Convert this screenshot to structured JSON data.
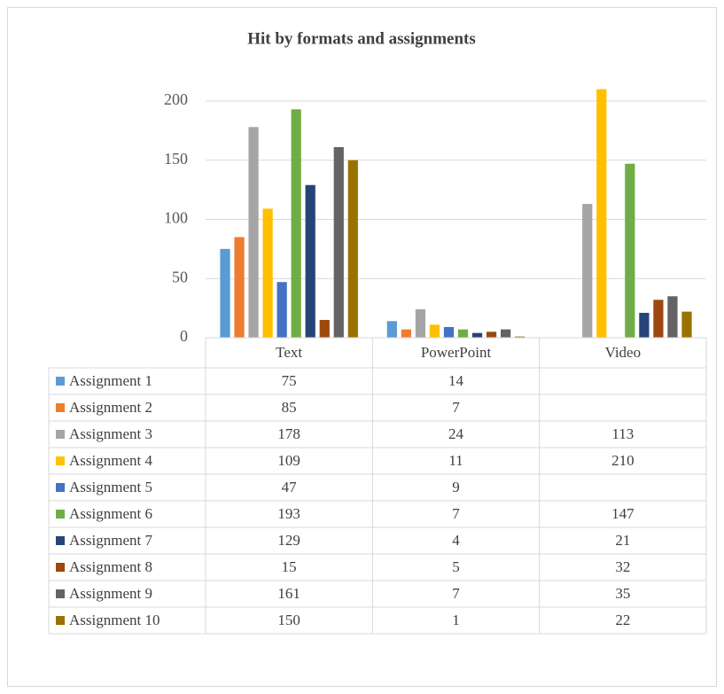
{
  "chart_data": {
    "type": "bar",
    "title": "Hit by formats and assignments",
    "categories": [
      "Text",
      "PowerPoint",
      "Video"
    ],
    "series": [
      {
        "name": "Assignment 1",
        "color": "#5b9bd5",
        "values": [
          75,
          14,
          null
        ]
      },
      {
        "name": "Assignment 2",
        "color": "#ed7d31",
        "values": [
          85,
          7,
          null
        ]
      },
      {
        "name": "Assignment 3",
        "color": "#a5a5a5",
        "values": [
          178,
          24,
          113
        ]
      },
      {
        "name": "Assignment 4",
        "color": "#ffc000",
        "values": [
          109,
          11,
          210
        ]
      },
      {
        "name": "Assignment 5",
        "color": "#4472c4",
        "values": [
          47,
          9,
          null
        ]
      },
      {
        "name": "Assignment 6",
        "color": "#70ad47",
        "values": [
          193,
          7,
          147
        ]
      },
      {
        "name": "Assignment 7",
        "color": "#264478",
        "values": [
          129,
          4,
          21
        ]
      },
      {
        "name": "Assignment 8",
        "color": "#9e480e",
        "values": [
          15,
          5,
          32
        ]
      },
      {
        "name": "Assignment 9",
        "color": "#636363",
        "values": [
          161,
          7,
          35
        ]
      },
      {
        "name": "Assignment 10",
        "color": "#997300",
        "values": [
          150,
          1,
          22
        ]
      }
    ],
    "ylim": [
      0,
      210
    ],
    "yticks": [
      0,
      50,
      100,
      150,
      200
    ],
    "grid": true
  }
}
